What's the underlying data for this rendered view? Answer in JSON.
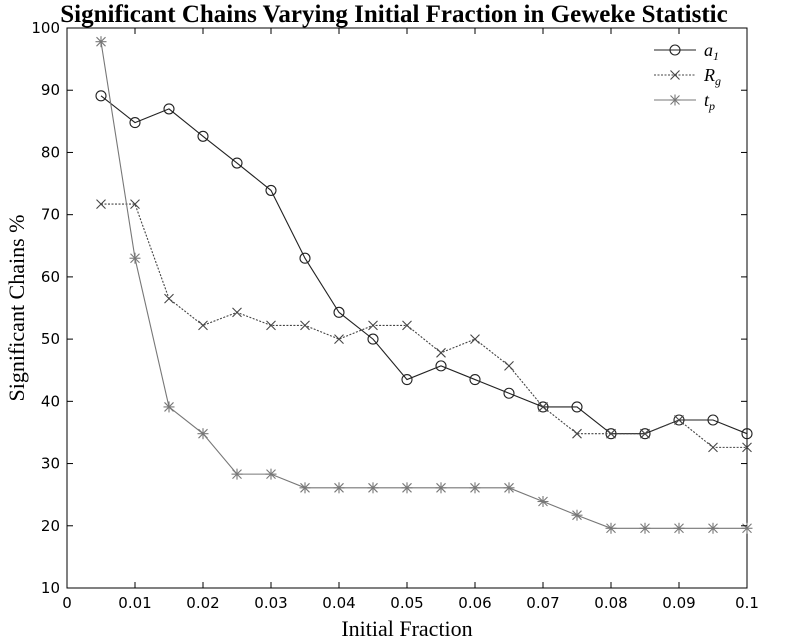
{
  "chart_data": {
    "type": "line",
    "title": "Significant Chains Varying Initial Fraction in Geweke Statistic",
    "xlabel": "Initial Fraction",
    "ylabel": "Significant Chains %",
    "xlim": [
      0,
      0.1
    ],
    "ylim": [
      10,
      100
    ],
    "x_ticks": [
      0,
      0.01,
      0.02,
      0.03,
      0.04,
      0.05,
      0.06,
      0.07,
      0.08,
      0.09,
      0.1
    ],
    "x_tick_labels": [
      "0",
      "0.01",
      "0.02",
      "0.03",
      "0.04",
      "0.05",
      "0.06",
      "0.07",
      "0.08",
      "0.09",
      "0.1"
    ],
    "y_ticks": [
      10,
      20,
      30,
      40,
      50,
      60,
      70,
      80,
      90,
      100
    ],
    "y_tick_labels": [
      "10",
      "20",
      "30",
      "40",
      "50",
      "60",
      "70",
      "80",
      "90",
      "100"
    ],
    "grid": false,
    "legend_position": "top-right",
    "x": [
      0.005,
      0.01,
      0.015,
      0.02,
      0.025,
      0.03,
      0.035,
      0.04,
      0.045,
      0.05,
      0.055,
      0.06,
      0.065,
      0.07,
      0.075,
      0.08,
      0.085,
      0.09,
      0.095,
      0.1
    ],
    "series": [
      {
        "name_main": "a",
        "name_sub": "1",
        "marker": "circle",
        "line_style": "solid",
        "color": "#222222",
        "values": [
          89.1,
          84.8,
          87.0,
          82.6,
          78.3,
          73.9,
          63.0,
          54.3,
          50.0,
          43.5,
          45.7,
          43.5,
          41.3,
          39.1,
          39.1,
          34.8,
          34.8,
          37.0,
          37.0,
          34.8
        ]
      },
      {
        "name_main": "R",
        "name_sub": "g",
        "marker": "x",
        "line_style": "dotted",
        "color": "#444444",
        "values": [
          71.7,
          71.7,
          56.5,
          52.2,
          54.3,
          52.2,
          52.2,
          50.0,
          52.2,
          52.2,
          47.8,
          50.0,
          45.7,
          39.1,
          34.8,
          34.8,
          34.8,
          37.0,
          32.6,
          32.6
        ]
      },
      {
        "name_main": "t",
        "name_sub": "p",
        "marker": "asterisk",
        "line_style": "solid",
        "color": "#777777",
        "values": [
          97.8,
          63.0,
          39.1,
          34.8,
          28.3,
          28.3,
          26.1,
          26.1,
          26.1,
          26.1,
          26.1,
          26.1,
          26.1,
          23.9,
          21.7,
          19.6,
          19.6,
          19.6,
          19.6,
          19.6
        ]
      }
    ]
  }
}
